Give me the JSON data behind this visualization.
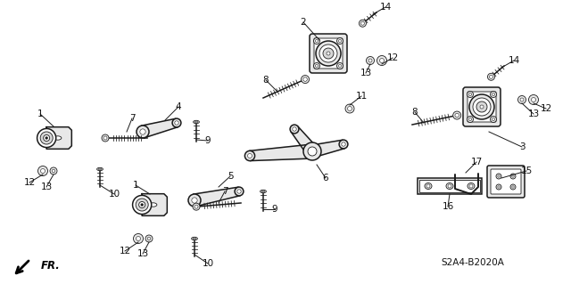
{
  "bg_color": "#ffffff",
  "line_color": "#1a1a1a",
  "text_color": "#111111",
  "diagram_code": "S2A4-B2020A",
  "fr_label": "FR.",
  "lw_main": 1.1,
  "lw_thin": 0.6,
  "gray_fill": "#d8d8d8",
  "light_gray": "#e8e8e8",
  "mid_gray": "#bbbbbb"
}
